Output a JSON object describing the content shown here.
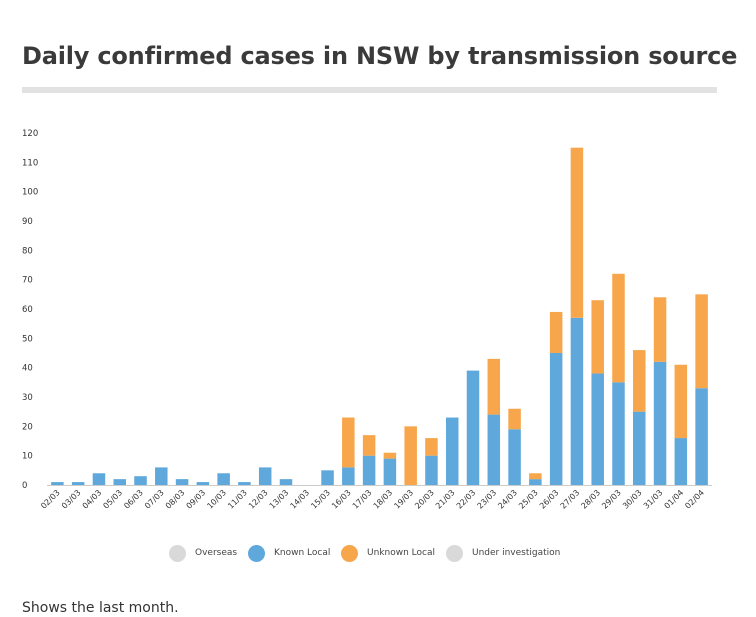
{
  "title": "Daily confirmed cases in NSW by transmission source",
  "footnote": "Shows the last month.",
  "legend": [
    {
      "label": "Overseas",
      "color": "#d9d9d9"
    },
    {
      "label": "Known Local",
      "color": "#5ea8dc"
    },
    {
      "label": "Unknown Local",
      "color": "#f7a64b"
    },
    {
      "label": "Under investigation",
      "color": "#d9d9d9"
    }
  ],
  "chart_data": {
    "type": "bar",
    "stacked": true,
    "title": "Daily confirmed cases in NSW by transmission source",
    "xlabel": "",
    "ylabel": "",
    "ylim": [
      0,
      120
    ],
    "yticks": [
      0,
      10,
      20,
      30,
      40,
      50,
      60,
      70,
      80,
      90,
      100,
      110,
      120
    ],
    "categories": [
      "02/03",
      "03/03",
      "04/03",
      "05/03",
      "06/03",
      "07/03",
      "08/03",
      "09/03",
      "10/03",
      "11/03",
      "12/03",
      "13/03",
      "14/03",
      "15/03",
      "16/03",
      "17/03",
      "18/03",
      "19/03",
      "20/03",
      "21/03",
      "22/03",
      "23/03",
      "24/03",
      "25/03",
      "26/03",
      "27/03",
      "28/03",
      "29/03",
      "30/03",
      "31/03",
      "01/04",
      "02/04"
    ],
    "series": [
      {
        "name": "Known Local",
        "color": "#5ea8dc",
        "values": [
          1,
          1,
          4,
          2,
          3,
          6,
          2,
          1,
          4,
          1,
          6,
          2,
          0,
          5,
          6,
          10,
          9,
          0,
          10,
          23,
          39,
          24,
          19,
          2,
          45,
          57,
          38,
          35,
          25,
          42,
          16,
          33
        ]
      },
      {
        "name": "Unknown Local",
        "color": "#f7a64b",
        "values": [
          0,
          0,
          0,
          0,
          0,
          0,
          0,
          0,
          0,
          0,
          0,
          0,
          0,
          0,
          17,
          7,
          2,
          20,
          6,
          0,
          0,
          19,
          7,
          2,
          14,
          58,
          25,
          37,
          21,
          22,
          25,
          32
        ]
      }
    ]
  }
}
